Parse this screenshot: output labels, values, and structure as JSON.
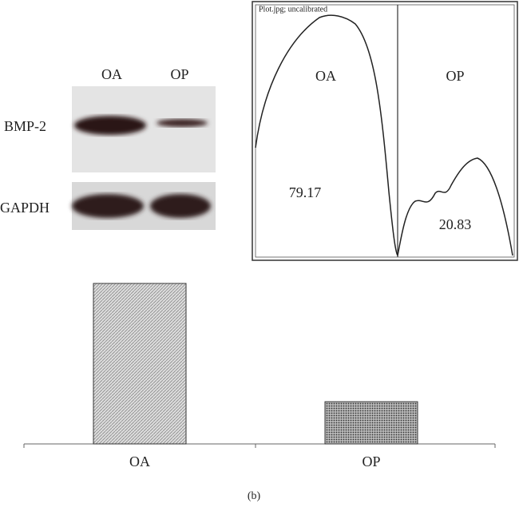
{
  "blot": {
    "lanes": [
      "OA",
      "OP"
    ],
    "bands": [
      "BMP-2",
      "GAPDH"
    ]
  },
  "densitometry": {
    "title": "Plot.jpg; uncalibrated",
    "lanes": [
      "OA",
      "OP"
    ],
    "areas": [
      79.17,
      20.83
    ]
  },
  "chart_data": {
    "type": "bar",
    "categories": [
      "OA",
      "OP"
    ],
    "values": [
      79.17,
      20.83
    ]
  },
  "caption": "(b)"
}
